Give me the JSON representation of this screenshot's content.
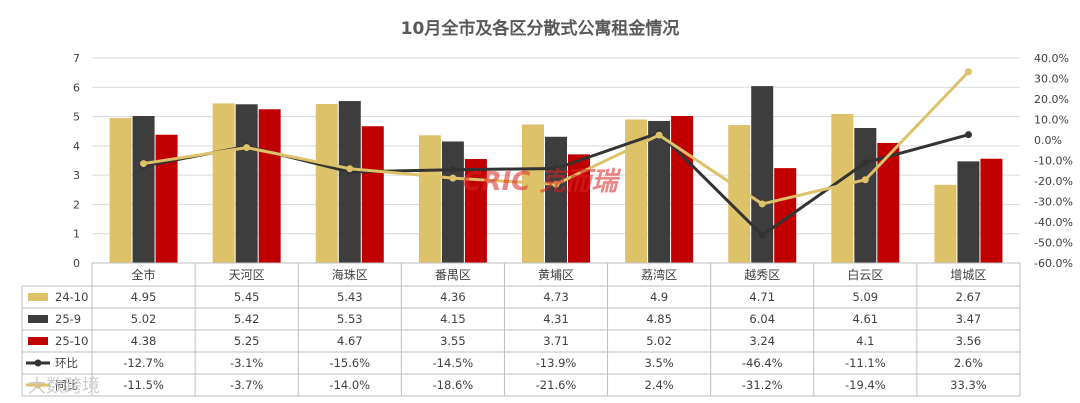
{
  "chart_data": {
    "type": "bar",
    "title": "10月全市及各区分散式公寓租金情况",
    "categories": [
      "全市",
      "天河区",
      "海珠区",
      "番禺区",
      "黄埔区",
      "荔湾区",
      "越秀区",
      "白云区",
      "增城区"
    ],
    "series": [
      {
        "name": "24-10",
        "type": "bar",
        "axis": "left",
        "color": "#DDC26A",
        "values": [
          4.95,
          5.45,
          5.43,
          4.36,
          4.73,
          4.9,
          4.71,
          5.09,
          2.67
        ],
        "labels": [
          "4.95",
          "5.45",
          "5.43",
          "4.36",
          "4.73",
          "4.9",
          "4.71",
          "5.09",
          "2.67"
        ]
      },
      {
        "name": "25-9",
        "type": "bar",
        "axis": "left",
        "color": "#3D3D3D",
        "values": [
          5.02,
          5.42,
          5.53,
          4.15,
          4.31,
          4.85,
          6.04,
          4.61,
          3.47
        ],
        "labels": [
          "5.02",
          "5.42",
          "5.53",
          "4.15",
          "4.31",
          "4.85",
          "6.04",
          "4.61",
          "3.47"
        ]
      },
      {
        "name": "25-10",
        "type": "bar",
        "axis": "left",
        "color": "#C00000",
        "values": [
          4.38,
          5.25,
          4.67,
          3.55,
          3.71,
          5.02,
          3.24,
          4.1,
          3.56
        ],
        "labels": [
          "4.38",
          "5.25",
          "4.67",
          "3.55",
          "3.71",
          "5.02",
          "3.24",
          "4.1",
          "3.56"
        ]
      },
      {
        "name": "环比",
        "type": "line",
        "axis": "right",
        "color": "#333333",
        "values": [
          -12.7,
          -3.1,
          -15.6,
          -14.5,
          -13.9,
          3.5,
          -46.4,
          -11.1,
          2.6
        ],
        "labels": [
          "-12.7%",
          "-3.1%",
          "-15.6%",
          "-14.5%",
          "-13.9%",
          "3.5%",
          "-46.4%",
          "-11.1%",
          "2.6%"
        ]
      },
      {
        "name": "同比",
        "type": "line",
        "axis": "right",
        "color": "#DDC26A",
        "values": [
          -11.5,
          -3.7,
          -14.0,
          -18.6,
          -21.6,
          2.4,
          -31.2,
          -19.4,
          33.3
        ],
        "labels": [
          "-11.5%",
          "-3.7%",
          "-14.0%",
          "-18.6%",
          "-21.6%",
          "2.4%",
          "-31.2%",
          "-19.4%",
          "33.3%"
        ]
      }
    ],
    "y_left": {
      "min": 0,
      "max": 7,
      "ticks": [
        "0",
        "1",
        "2",
        "3",
        "4",
        "5",
        "6",
        "7"
      ]
    },
    "y_right": {
      "min": -60,
      "max": 40,
      "ticks": [
        "-60.0%",
        "-50.0%",
        "-40.0%",
        "-30.0%",
        "-20.0%",
        "-10.0%",
        "0.0%",
        "10.0%",
        "20.0%",
        "30.0%",
        "40.0%"
      ]
    },
    "grid": true,
    "legend": "data-table-bottom"
  },
  "watermarks": {
    "center": "CRIC 克而瑞",
    "corner": "大数跨境"
  }
}
